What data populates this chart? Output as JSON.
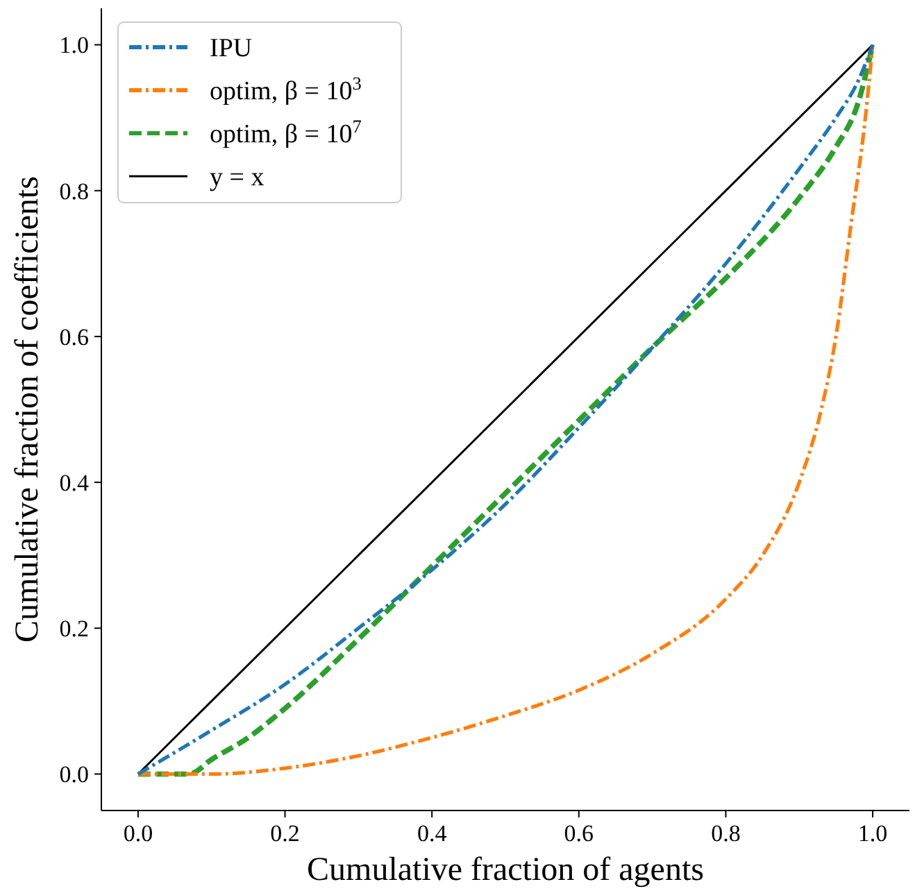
{
  "chart_data": {
    "type": "line",
    "xlabel": "Cumulative fraction of agents",
    "ylabel": "Cumulative fraction of coefficients",
    "xlim": [
      -0.05,
      1.05
    ],
    "ylim": [
      -0.05,
      1.05
    ],
    "xticks": [
      {
        "value": 0,
        "label": "0.0"
      },
      {
        "value": 0.2,
        "label": "0.2"
      },
      {
        "value": 0.4,
        "label": "0.4"
      },
      {
        "value": 0.6,
        "label": "0.6"
      },
      {
        "value": 0.8,
        "label": "0.8"
      },
      {
        "value": 1,
        "label": "1.0"
      }
    ],
    "yticks": [
      {
        "value": 0,
        "label": "0.0"
      },
      {
        "value": 0.2,
        "label": "0.2"
      },
      {
        "value": 0.4,
        "label": "0.4"
      },
      {
        "value": 0.6,
        "label": "0.6"
      },
      {
        "value": 0.8,
        "label": "0.8"
      },
      {
        "value": 1,
        "label": "1.0"
      }
    ],
    "grid": false,
    "legend": "top left",
    "series": [
      {
        "name": "IPU",
        "color": "#1f77b4",
        "line_style": "dashdot",
        "x": [
          0,
          0.1,
          0.2,
          0.3,
          0.4,
          0.5,
          0.6,
          0.7,
          0.8,
          0.9,
          0.95,
          0.98,
          1
        ],
        "values": [
          0,
          0.06,
          0.123,
          0.2,
          0.28,
          0.37,
          0.475,
          0.585,
          0.7,
          0.83,
          0.9,
          0.95,
          1
        ]
      },
      {
        "name": "optim, β = 10$^{3}$",
        "color": "#ff7f0e",
        "line_style": "dashdot",
        "x": [
          0,
          0.1,
          0.2,
          0.3,
          0.4,
          0.5,
          0.6,
          0.7,
          0.8,
          0.85,
          0.9,
          0.93,
          0.95,
          0.97,
          0.99,
          1
        ],
        "values": [
          0,
          0,
          0.008,
          0.025,
          0.05,
          0.08,
          0.115,
          0.165,
          0.24,
          0.3,
          0.4,
          0.5,
          0.6,
          0.75,
          0.9,
          1
        ]
      },
      {
        "name": "optim, β = 10$^{7}$",
        "color": "#2ca02c",
        "line_style": "dashed",
        "x": [
          0,
          0.07,
          0.1,
          0.15,
          0.2,
          0.3,
          0.4,
          0.5,
          0.6,
          0.7,
          0.8,
          0.9,
          0.95,
          0.98,
          1
        ],
        "values": [
          0,
          0,
          0.02,
          0.05,
          0.09,
          0.185,
          0.285,
          0.385,
          0.485,
          0.585,
          0.68,
          0.79,
          0.86,
          0.92,
          1
        ]
      },
      {
        "name": "y = x",
        "color": "#000000",
        "line_style": "solid",
        "x": [
          0,
          1
        ],
        "values": [
          0,
          1
        ]
      }
    ]
  }
}
